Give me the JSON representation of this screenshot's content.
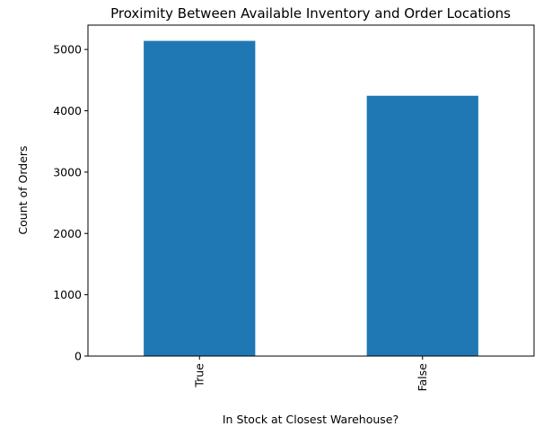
{
  "chart_data": {
    "type": "bar",
    "title": "Proximity Between Available Inventory and Order Locations",
    "xlabel": "In Stock at Closest Warehouse?",
    "ylabel": "Count of Orders",
    "categories": [
      "True",
      "False"
    ],
    "values": [
      5140,
      4245
    ],
    "ylim": [
      0,
      5397
    ],
    "yticks": [
      0,
      1000,
      2000,
      3000,
      4000,
      5000
    ],
    "bar_color": "#1f77b4",
    "grid": false,
    "legend": "none"
  }
}
